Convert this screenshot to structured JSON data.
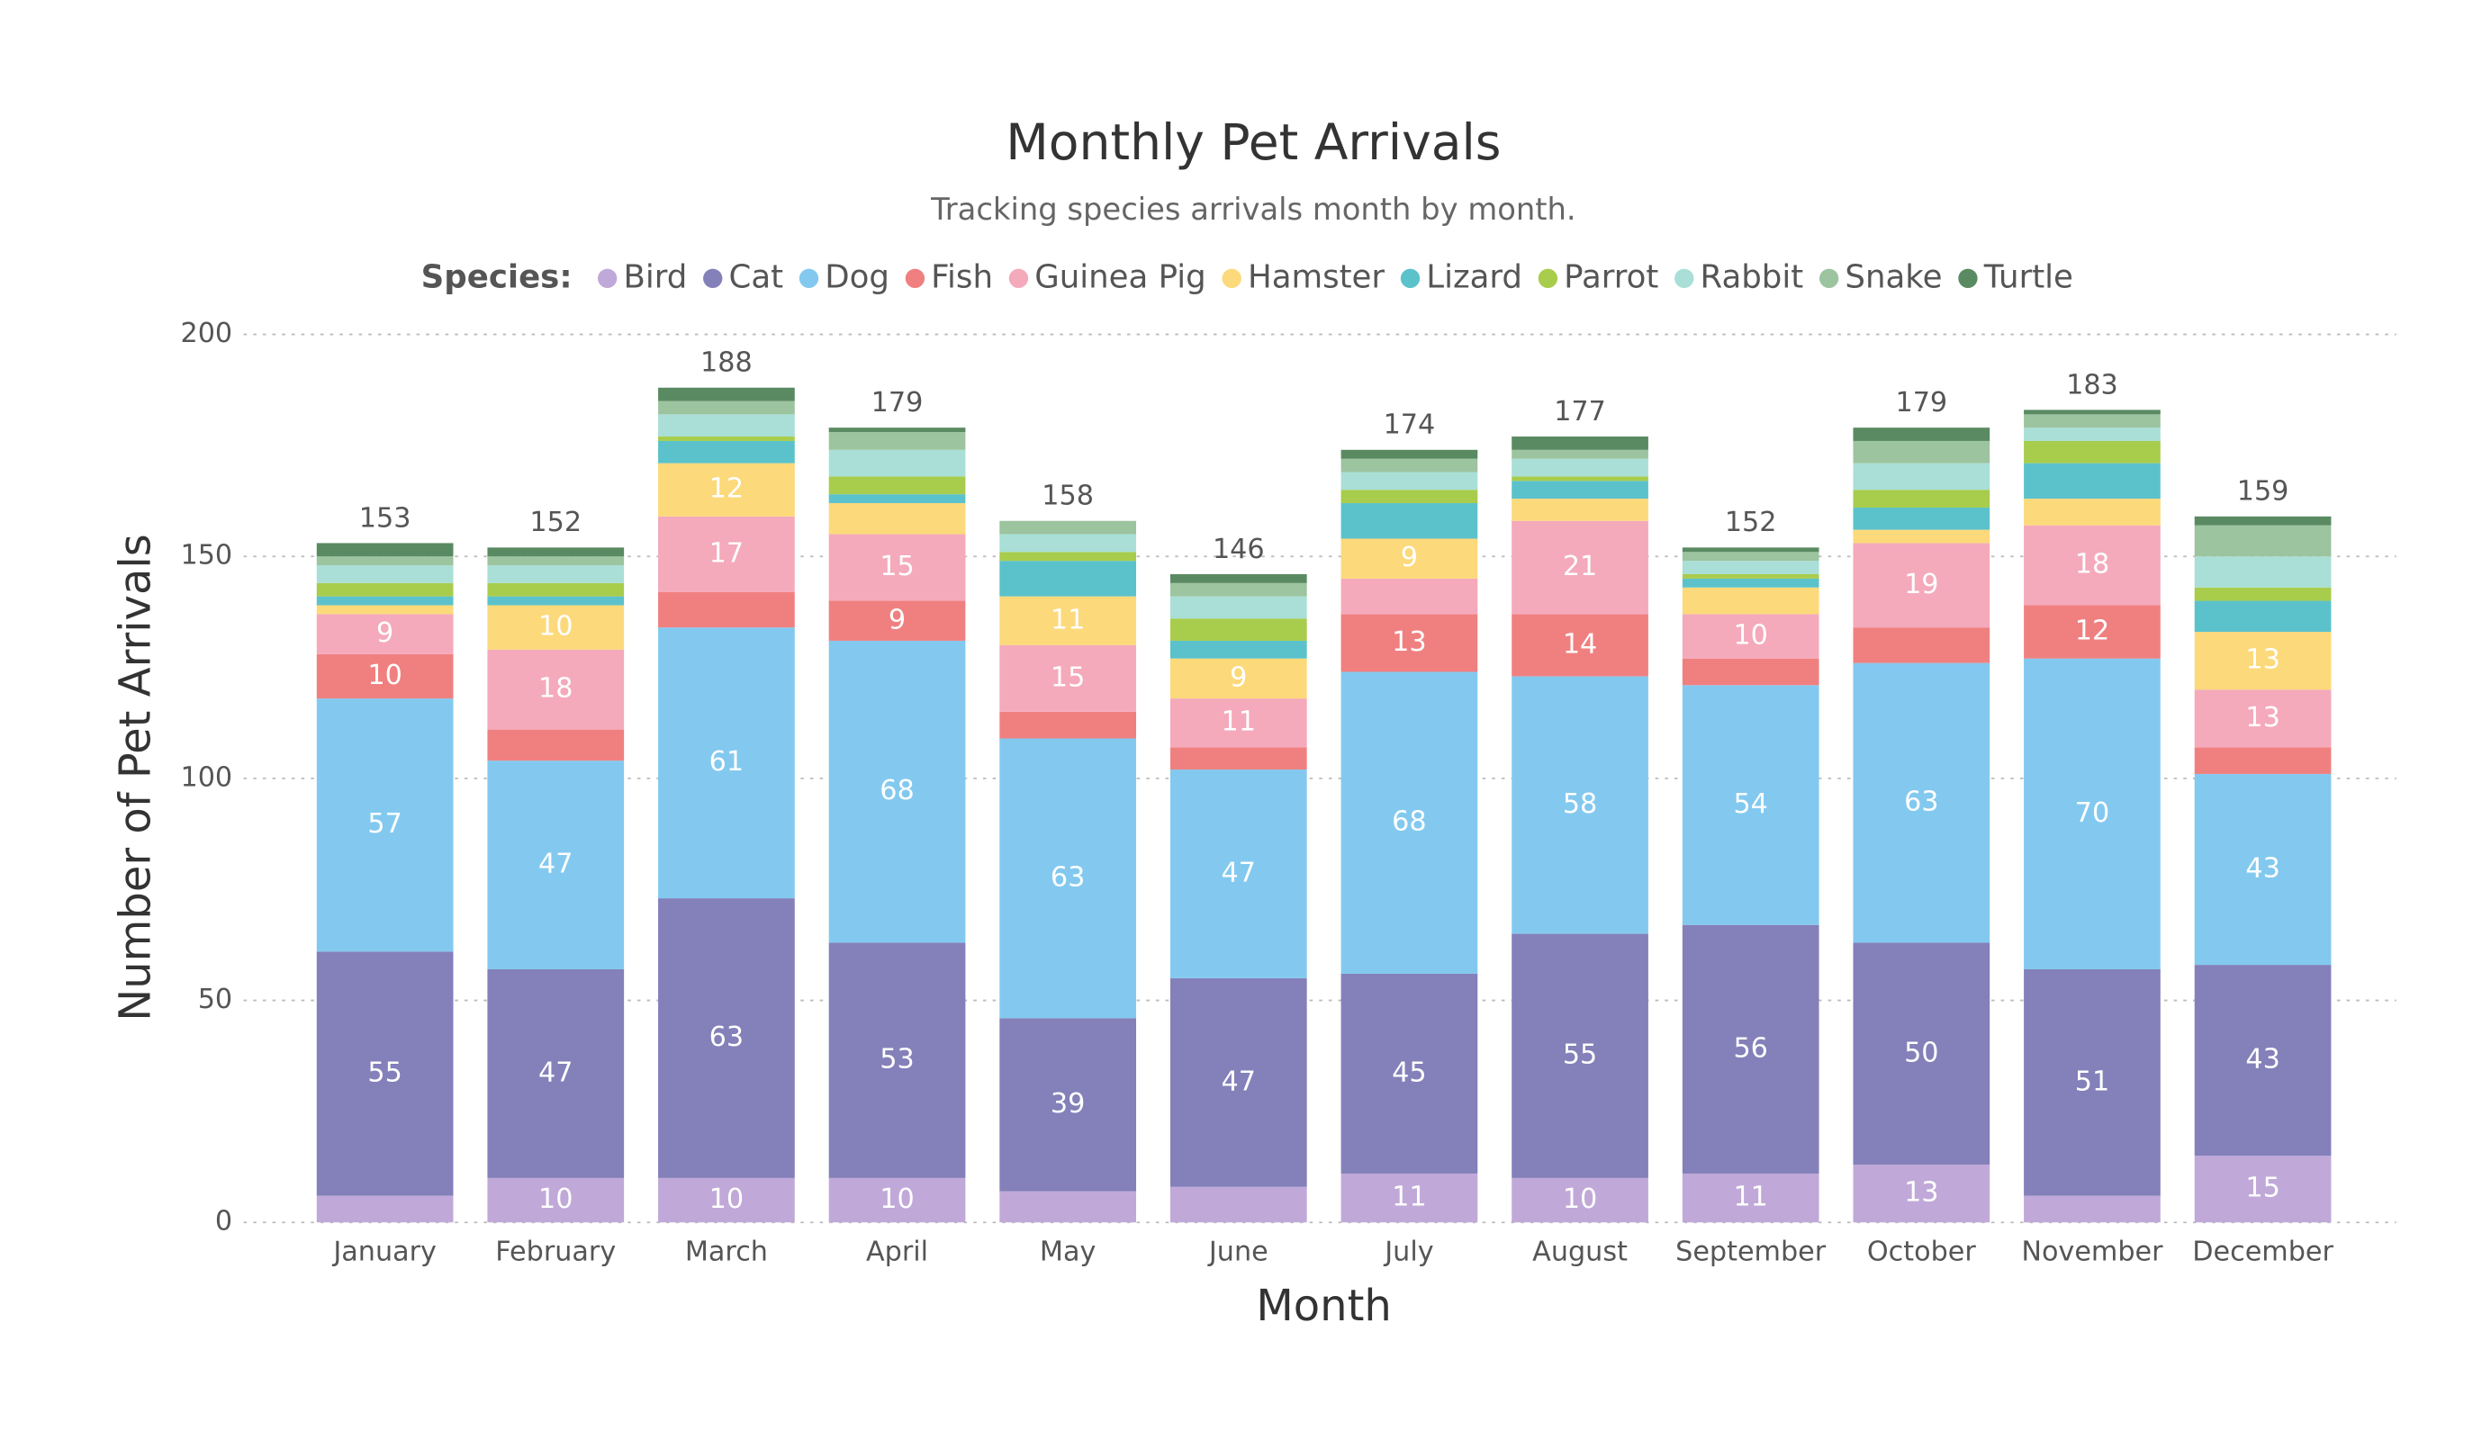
{
  "chart_data": {
    "type": "stacked_bar",
    "title": "Monthly Pet Arrivals",
    "subtitle": "Tracking species arrivals month by month.",
    "x_label": "Month",
    "y_label": "Number of Pet Arrivals",
    "legend_title": "Species:",
    "categories": [
      "January",
      "February",
      "March",
      "April",
      "May",
      "June",
      "July",
      "August",
      "September",
      "October",
      "November",
      "December"
    ],
    "series": [
      {
        "name": "Bird",
        "color": "#c0a9d8",
        "values": [
          6,
          10,
          10,
          10,
          7,
          8,
          11,
          10,
          11,
          13,
          6,
          15
        ]
      },
      {
        "name": "Cat",
        "color": "#8480b9",
        "values": [
          55,
          47,
          63,
          53,
          39,
          47,
          45,
          55,
          56,
          50,
          51,
          43
        ]
      },
      {
        "name": "Dog",
        "color": "#83c9ef",
        "values": [
          57,
          47,
          61,
          68,
          63,
          47,
          68,
          58,
          54,
          63,
          70,
          43
        ]
      },
      {
        "name": "Fish",
        "color": "#f08080",
        "values": [
          10,
          7,
          8,
          9,
          6,
          5,
          13,
          14,
          6,
          8,
          12,
          6
        ]
      },
      {
        "name": "Guinea Pig",
        "color": "#f4aabb",
        "values": [
          9,
          18,
          17,
          15,
          15,
          11,
          8,
          21,
          10,
          19,
          18,
          13
        ]
      },
      {
        "name": "Hamster",
        "color": "#fcd97a",
        "values": [
          2,
          10,
          12,
          7,
          11,
          9,
          9,
          5,
          6,
          3,
          6,
          13
        ]
      },
      {
        "name": "Lizard",
        "color": "#5bc2cb",
        "values": [
          2,
          2,
          5,
          2,
          8,
          4,
          8,
          4,
          2,
          5,
          8,
          7
        ]
      },
      {
        "name": "Parrot",
        "color": "#a8cc4c",
        "values": [
          3,
          3,
          1,
          4,
          2,
          5,
          3,
          1,
          1,
          4,
          5,
          3
        ]
      },
      {
        "name": "Rabbit",
        "color": "#a9dfd6",
        "values": [
          4,
          4,
          5,
          6,
          4,
          5,
          4,
          4,
          3,
          6,
          3,
          7
        ]
      },
      {
        "name": "Snake",
        "color": "#9cc49f",
        "values": [
          2,
          2,
          3,
          4,
          3,
          3,
          3,
          2,
          2,
          5,
          3,
          7
        ]
      },
      {
        "name": "Turtle",
        "color": "#5a8a62",
        "values": [
          3,
          2,
          3,
          1,
          0,
          2,
          2,
          3,
          1,
          3,
          1,
          2
        ]
      }
    ],
    "totals": [
      153,
      152,
      188,
      179,
      158,
      146,
      174,
      177,
      152,
      179,
      183,
      159
    ],
    "ylim": [
      0,
      200
    ],
    "yticks": [
      0,
      50,
      100,
      150,
      200
    ],
    "grid": true
  }
}
